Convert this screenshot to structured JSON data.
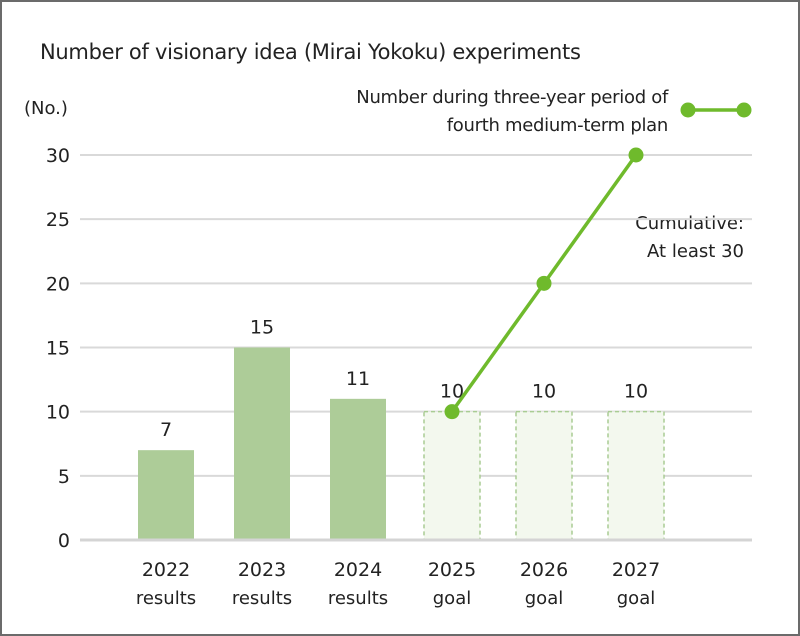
{
  "chart_data": {
    "type": "bar",
    "title": "Number of visionary idea (Mirai Yokoku) experiments",
    "ylabel": "(No.)",
    "ylim": [
      0,
      30
    ],
    "yticks": [
      0,
      5,
      10,
      15,
      20,
      25,
      30
    ],
    "grid": true,
    "categories": [
      [
        "2022",
        "results"
      ],
      [
        "2023",
        "results"
      ],
      [
        "2024",
        "results"
      ],
      [
        "2025",
        "goal"
      ],
      [
        "2026",
        "goal"
      ],
      [
        "2027",
        "goal"
      ]
    ],
    "bars": {
      "values": [
        7,
        15,
        11,
        10,
        10,
        10
      ],
      "styles": [
        "actual",
        "actual",
        "actual",
        "goal",
        "goal",
        "goal"
      ]
    },
    "line": {
      "name": "Number during three-year period of fourth medium-term plan",
      "name_lines": [
        "Number during three-year period of",
        "fourth medium-term plan"
      ],
      "category_indices": [
        3,
        4,
        5
      ],
      "values": [
        10,
        20,
        30
      ]
    },
    "annotation": [
      "Cumulative:",
      "At least 30"
    ],
    "legend_position": "top-right",
    "colors": {
      "actual_bar": "#adcc98",
      "goal_bar_fill": "#f3f8ee",
      "goal_bar_stroke": "#a9cc93",
      "line": "#6fba2c",
      "grid": "#d9d9d9",
      "axis": "#d4d4d4"
    }
  }
}
